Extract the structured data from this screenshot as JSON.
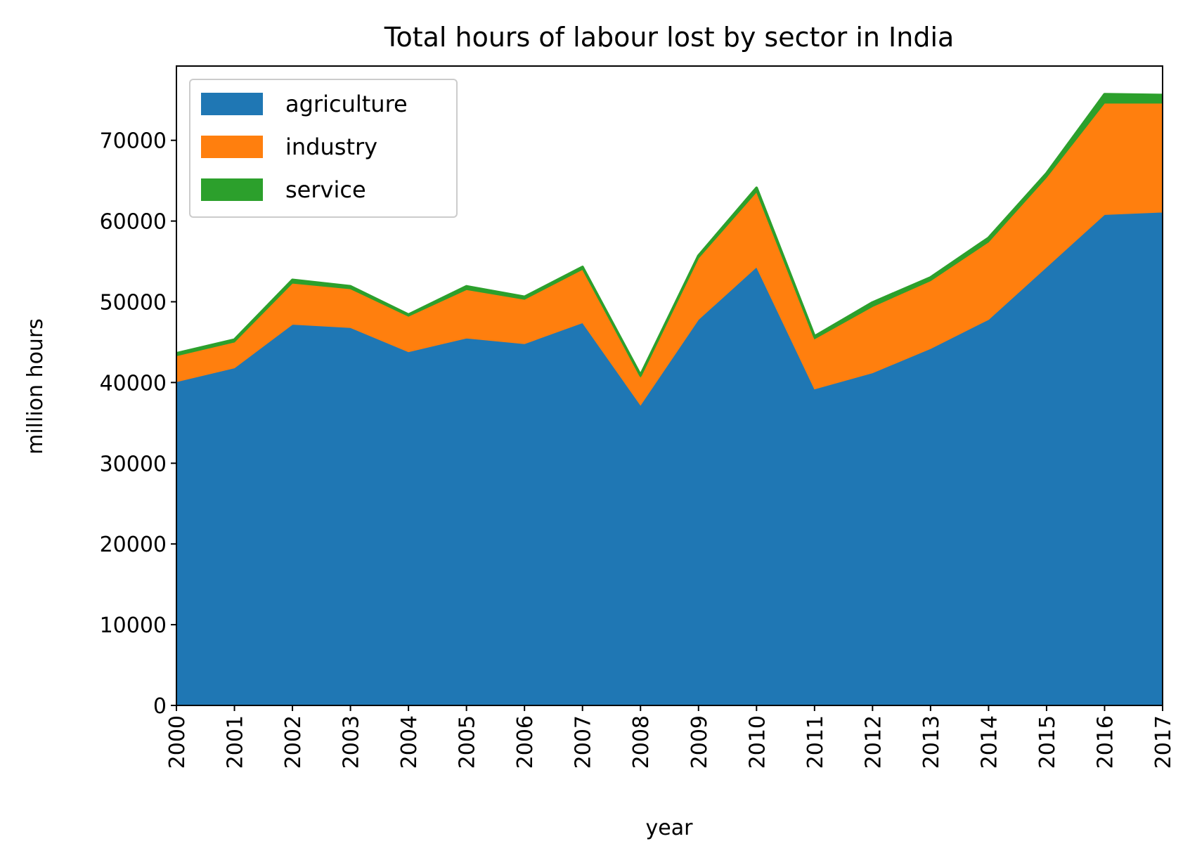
{
  "chart_data": {
    "type": "area",
    "stacked": true,
    "title": "Total hours of labour lost by sector in India",
    "xlabel": "year",
    "ylabel": "million hours",
    "x": [
      "2000",
      "2001",
      "2002",
      "2003",
      "2004",
      "2005",
      "2006",
      "2007",
      "2008",
      "2009",
      "2010",
      "2011",
      "2012",
      "2013",
      "2014",
      "2015",
      "2016",
      "2017"
    ],
    "xlim": [
      2000,
      2017
    ],
    "ylim": [
      0,
      79200
    ],
    "y_ticks": [
      0,
      10000,
      20000,
      30000,
      40000,
      50000,
      60000,
      70000
    ],
    "grid": false,
    "legend_position": "top-left",
    "series": [
      {
        "name": "agriculture",
        "color": "#1f77b4",
        "values": [
          40100,
          41800,
          47200,
          46800,
          43800,
          45500,
          44800,
          47400,
          37200,
          47800,
          54300,
          39200,
          41200,
          44200,
          47800,
          54300,
          60800,
          61100
        ]
      },
      {
        "name": "industry",
        "color": "#ff7f0e",
        "values": [
          3200,
          3200,
          5100,
          4800,
          4400,
          6000,
          5500,
          6600,
          3500,
          7600,
          9300,
          6200,
          8200,
          8400,
          9600,
          11100,
          13800,
          13500
        ]
      },
      {
        "name": "service",
        "color": "#2ca02c",
        "values": [
          300,
          300,
          400,
          300,
          200,
          400,
          300,
          300,
          200,
          300,
          500,
          300,
          500,
          400,
          500,
          500,
          1100,
          1000
        ]
      }
    ]
  }
}
